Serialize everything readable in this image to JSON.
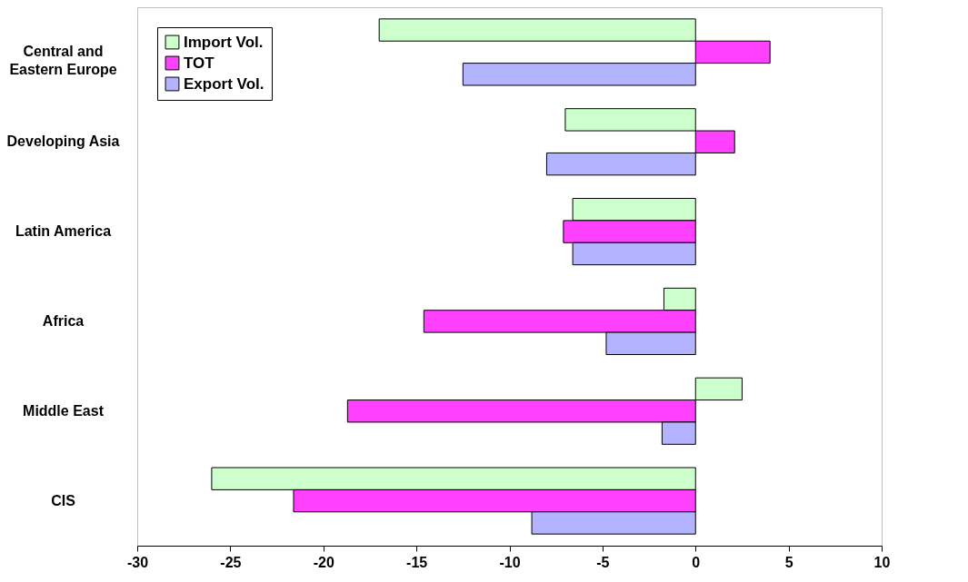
{
  "chart_data": {
    "type": "bar",
    "orientation": "horizontal",
    "categories": [
      "Central and Eastern Europe",
      "Developing Asia",
      "Latin America",
      "Africa",
      "Middle East",
      "CIS"
    ],
    "series": [
      {
        "name": "Import Vol.",
        "color": "#ccffcc",
        "values": [
          -17.0,
          -7.0,
          -6.6,
          -1.7,
          2.5,
          -26.0
        ]
      },
      {
        "name": "TOT",
        "color": "#ff40ff",
        "values": [
          4.0,
          2.1,
          -7.1,
          -14.6,
          -18.7,
          -21.6
        ]
      },
      {
        "name": "Export Vol.",
        "color": "#b3b3ff",
        "values": [
          -12.5,
          -8.0,
          -6.6,
          -4.8,
          -1.8,
          -8.8
        ]
      }
    ],
    "xlim": [
      -30,
      10
    ],
    "xticks": [
      -30,
      -25,
      -20,
      -15,
      -10,
      -5,
      0,
      5,
      10
    ],
    "grid": false,
    "legend": "top left"
  }
}
